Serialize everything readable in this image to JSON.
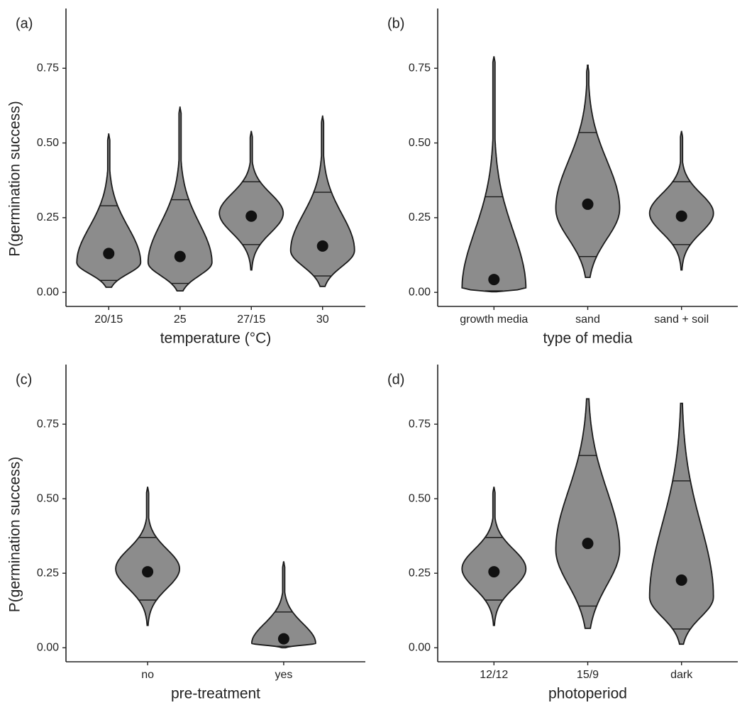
{
  "chart_data": [
    {
      "type": "violin",
      "panel_label": "(a)",
      "ylabel": "P(germination success)",
      "xlabel": "temperature (°C)",
      "categories": [
        "20/15",
        "25",
        "27/15",
        "30"
      ],
      "min": [
        0.017,
        0.005,
        0.075,
        0.02
      ],
      "max": [
        0.53,
        0.62,
        0.54,
        0.59
      ],
      "q_low": [
        0.04,
        0.03,
        0.16,
        0.055
      ],
      "q_high": [
        0.29,
        0.31,
        0.37,
        0.335
      ],
      "mode": [
        0.1,
        0.1,
        0.265,
        0.14
      ],
      "point": [
        0.13,
        0.12,
        0.255,
        0.155
      ],
      "ylim": [
        -0.047,
        0.95
      ],
      "yticks": [
        {
          "value": 0,
          "label": "0.00"
        },
        {
          "value": 0.25,
          "label": "0.25"
        },
        {
          "value": 0.5,
          "label": "0.50"
        },
        {
          "value": 0.75,
          "label": "0.75"
        }
      ],
      "fill": "#8c8c8c",
      "point_color": "#111111"
    },
    {
      "type": "violin",
      "panel_label": "(b)",
      "xlabel": "type of media",
      "categories": [
        "growth media",
        "sand",
        "sand + soil"
      ],
      "min": [
        0.002,
        0.05,
        0.075
      ],
      "max": [
        0.79,
        0.76,
        0.54
      ],
      "q_low": [
        0.005,
        0.12,
        0.16
      ],
      "q_high": [
        0.32,
        0.535,
        0.37
      ],
      "mode": [
        0.012,
        0.28,
        0.265
      ],
      "point": [
        0.043,
        0.295,
        0.255
      ],
      "ylim": [
        -0.047,
        0.95
      ],
      "yticks": [
        {
          "value": 0,
          "label": "0.00"
        },
        {
          "value": 0.25,
          "label": "0.25"
        },
        {
          "value": 0.5,
          "label": "0.50"
        },
        {
          "value": 0.75,
          "label": "0.75"
        }
      ],
      "fill": "#8c8c8c",
      "point_color": "#111111"
    },
    {
      "type": "violin",
      "panel_label": "(c)",
      "ylabel": "P(germination success)",
      "xlabel": "pre-treatment",
      "categories": [
        "no",
        "yes"
      ],
      "min": [
        0.075,
        0.0
      ],
      "max": [
        0.54,
        0.29
      ],
      "q_low": [
        0.16,
        0.005
      ],
      "q_high": [
        0.37,
        0.12
      ],
      "mode": [
        0.265,
        0.015
      ],
      "point": [
        0.255,
        0.03
      ],
      "ylim": [
        -0.047,
        0.95
      ],
      "yticks": [
        {
          "value": 0,
          "label": "0.00"
        },
        {
          "value": 0.25,
          "label": "0.25"
        },
        {
          "value": 0.5,
          "label": "0.50"
        },
        {
          "value": 0.75,
          "label": "0.75"
        }
      ],
      "fill": "#8c8c8c",
      "point_color": "#111111"
    },
    {
      "type": "violin",
      "panel_label": "(d)",
      "xlabel": "photoperiod",
      "categories": [
        "12/12",
        "15/9",
        "dark"
      ],
      "min": [
        0.075,
        0.065,
        0.012
      ],
      "max": [
        0.54,
        0.835,
        0.82
      ],
      "q_low": [
        0.16,
        0.14,
        0.063
      ],
      "q_high": [
        0.37,
        0.645,
        0.56
      ],
      "mode": [
        0.265,
        0.33,
        0.17
      ],
      "point": [
        0.255,
        0.35,
        0.227
      ],
      "ylim": [
        -0.047,
        0.95
      ],
      "yticks": [
        {
          "value": 0,
          "label": "0.00"
        },
        {
          "value": 0.25,
          "label": "0.25"
        },
        {
          "value": 0.5,
          "label": "0.50"
        },
        {
          "value": 0.75,
          "label": "0.75"
        }
      ],
      "fill": "#8c8c8c",
      "point_color": "#111111"
    }
  ]
}
